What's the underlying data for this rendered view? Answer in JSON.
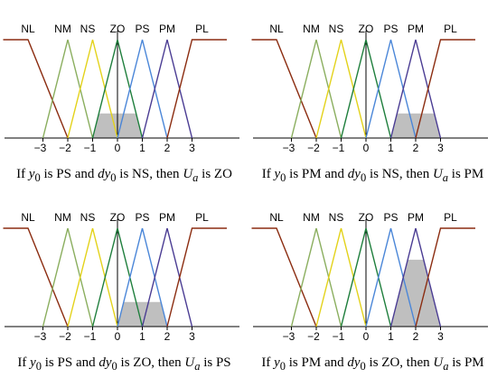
{
  "chart_data": {
    "type": "line",
    "set_labels": [
      "NL",
      "NM",
      "NS",
      "ZO",
      "PS",
      "PM",
      "PL"
    ],
    "x_ticks": [
      -3,
      -2,
      -1,
      0,
      1,
      2,
      3
    ],
    "xlim": [
      -4.6,
      4.4
    ],
    "ylim": [
      0,
      1
    ],
    "colors": {
      "NL": "#8B2C10",
      "NM": "#8AAE5E",
      "NS": "#E3D21A",
      "ZO": "#1E7E3C",
      "PS": "#4A86D8",
      "PM": "#4A3C93",
      "PL": "#8B2C10",
      "shade": "#bfbfbf"
    },
    "sets": [
      {
        "name": "NL",
        "points": [
          [
            -4.6,
            1
          ],
          [
            -3.6,
            1
          ],
          [
            -2.0,
            0
          ]
        ]
      },
      {
        "name": "NM",
        "points": [
          [
            -3.0,
            0
          ],
          [
            -2.0,
            1
          ],
          [
            -1.0,
            0
          ]
        ]
      },
      {
        "name": "NS",
        "points": [
          [
            -2.0,
            0
          ],
          [
            -1.0,
            1
          ],
          [
            0.0,
            0
          ]
        ]
      },
      {
        "name": "ZO",
        "points": [
          [
            -1.0,
            0
          ],
          [
            0.0,
            1
          ],
          [
            1.0,
            0
          ]
        ]
      },
      {
        "name": "PS",
        "points": [
          [
            0.0,
            0
          ],
          [
            1.0,
            1
          ],
          [
            2.0,
            0
          ]
        ]
      },
      {
        "name": "PM",
        "points": [
          [
            1.0,
            0
          ],
          [
            2.0,
            1
          ],
          [
            3.0,
            0
          ]
        ]
      },
      {
        "name": "PL",
        "points": [
          [
            2.0,
            0
          ],
          [
            3.0,
            1
          ],
          [
            4.4,
            1
          ]
        ]
      }
    ],
    "panels": [
      {
        "caption": {
          "y": "y",
          "sub": "0",
          "a": " is PS and ",
          "dy": "dy",
          "b": " is NS, then ",
          "u": "U",
          "usub": "a",
          "c": " is ZO"
        },
        "shaded_set": "ZO",
        "clip_level": 0.25
      },
      {
        "caption": {
          "y": "y",
          "sub": "0",
          "a": " is PM and ",
          "dy": "dy",
          "b": " is NS, then ",
          "u": "U",
          "usub": "a",
          "c": " is PM"
        },
        "shaded_set": "PM",
        "clip_level": 0.25
      },
      {
        "caption": {
          "y": "y",
          "sub": "0",
          "a": " is PS and ",
          "dy": "dy",
          "b": " is ZO, then ",
          "u": "U",
          "usub": "a",
          "c": " is PS"
        },
        "shaded_set": "PS",
        "clip_level": 0.25
      },
      {
        "caption": {
          "y": "y",
          "sub": "0",
          "a": " is PM and ",
          "dy": "dy",
          "b": " is ZO, then ",
          "u": "U",
          "usub": "a",
          "c": " is PM"
        },
        "shaded_set": "PM",
        "clip_level": 0.68
      }
    ],
    "grid": false,
    "legend": "none"
  }
}
